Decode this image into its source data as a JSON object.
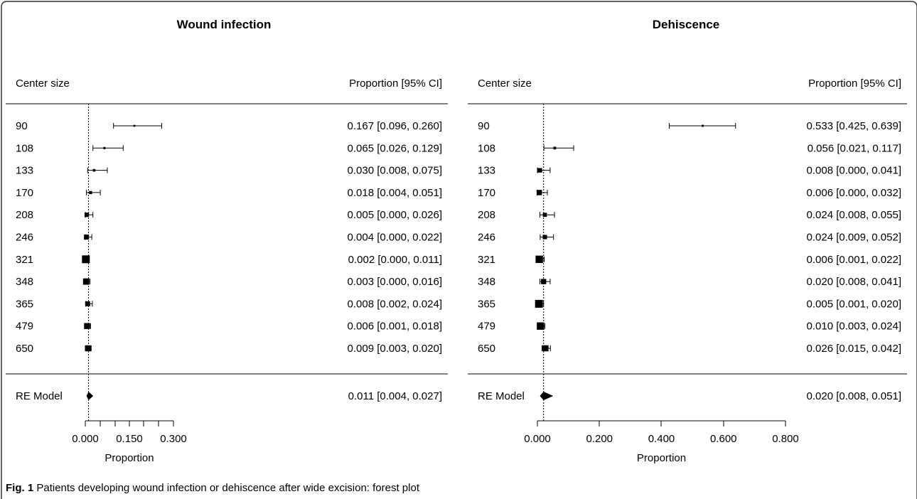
{
  "caption": {
    "label": "Fig. 1",
    "text": "Patients developing wound infection or dehiscence after wide excision: forest plot"
  },
  "chart_data": [
    {
      "type": "forest",
      "title": "Wound infection",
      "column_left": "Center size",
      "column_right": "Proportion [95% CI]",
      "xlabel": "Proportion",
      "xlim": [
        0,
        0.3
      ],
      "xticks": [
        "0.000",
        "0.150",
        "0.300"
      ],
      "reference_line": 0.011,
      "rows": [
        {
          "label": "90",
          "estimate": 0.167,
          "lower": 0.096,
          "upper": 0.26,
          "text": "0.167 [0.096, 0.260]"
        },
        {
          "label": "108",
          "estimate": 0.065,
          "lower": 0.026,
          "upper": 0.129,
          "text": "0.065 [0.026, 0.129]"
        },
        {
          "label": "133",
          "estimate": 0.03,
          "lower": 0.008,
          "upper": 0.075,
          "text": "0.030 [0.008, 0.075]"
        },
        {
          "label": "170",
          "estimate": 0.018,
          "lower": 0.004,
          "upper": 0.051,
          "text": "0.018 [0.004, 0.051]"
        },
        {
          "label": "208",
          "estimate": 0.005,
          "lower": 0.0,
          "upper": 0.026,
          "text": "0.005 [0.000, 0.026]"
        },
        {
          "label": "246",
          "estimate": 0.004,
          "lower": 0.0,
          "upper": 0.022,
          "text": "0.004 [0.000, 0.022]"
        },
        {
          "label": "321",
          "estimate": 0.002,
          "lower": 0.0,
          "upper": 0.011,
          "text": "0.002 [0.000, 0.011]"
        },
        {
          "label": "348",
          "estimate": 0.003,
          "lower": 0.0,
          "upper": 0.016,
          "text": "0.003 [0.000, 0.016]"
        },
        {
          "label": "365",
          "estimate": 0.008,
          "lower": 0.002,
          "upper": 0.024,
          "text": "0.008 [0.002, 0.024]"
        },
        {
          "label": "479",
          "estimate": 0.006,
          "lower": 0.001,
          "upper": 0.018,
          "text": "0.006 [0.001, 0.018]"
        },
        {
          "label": "650",
          "estimate": 0.009,
          "lower": 0.003,
          "upper": 0.02,
          "text": "0.009 [0.003, 0.020]"
        }
      ],
      "summary": {
        "label": "RE Model",
        "estimate": 0.011,
        "lower": 0.004,
        "upper": 0.027,
        "text": "0.011 [0.004, 0.027]"
      }
    },
    {
      "type": "forest",
      "title": "Dehiscence",
      "column_left": "Center size",
      "column_right": "Proportion [95% CI]",
      "xlabel": "Proportion",
      "xlim": [
        0,
        0.8
      ],
      "xticks": [
        "0.000",
        "0.200",
        "0.400",
        "0.600",
        "0.800"
      ],
      "reference_line": 0.02,
      "rows": [
        {
          "label": "90",
          "estimate": 0.533,
          "lower": 0.425,
          "upper": 0.639,
          "text": "0.533 [0.425, 0.639]"
        },
        {
          "label": "108",
          "estimate": 0.056,
          "lower": 0.021,
          "upper": 0.117,
          "text": "0.056 [0.021, 0.117]"
        },
        {
          "label": "133",
          "estimate": 0.008,
          "lower": 0.0,
          "upper": 0.041,
          "text": "0.008 [0.000, 0.041]"
        },
        {
          "label": "170",
          "estimate": 0.006,
          "lower": 0.0,
          "upper": 0.032,
          "text": "0.006 [0.000, 0.032]"
        },
        {
          "label": "208",
          "estimate": 0.024,
          "lower": 0.008,
          "upper": 0.055,
          "text": "0.024 [0.008, 0.055]"
        },
        {
          "label": "246",
          "estimate": 0.024,
          "lower": 0.009,
          "upper": 0.052,
          "text": "0.024 [0.009, 0.052]"
        },
        {
          "label": "321",
          "estimate": 0.006,
          "lower": 0.001,
          "upper": 0.022,
          "text": "0.006 [0.001, 0.022]"
        },
        {
          "label": "348",
          "estimate": 0.02,
          "lower": 0.008,
          "upper": 0.041,
          "text": "0.020 [0.008, 0.041]"
        },
        {
          "label": "365",
          "estimate": 0.005,
          "lower": 0.001,
          "upper": 0.02,
          "text": "0.005 [0.001, 0.020]"
        },
        {
          "label": "479",
          "estimate": 0.01,
          "lower": 0.003,
          "upper": 0.024,
          "text": "0.010 [0.003, 0.024]"
        },
        {
          "label": "650",
          "estimate": 0.026,
          "lower": 0.015,
          "upper": 0.042,
          "text": "0.026 [0.015, 0.042]"
        }
      ],
      "summary": {
        "label": "RE Model",
        "estimate": 0.02,
        "lower": 0.008,
        "upper": 0.051,
        "text": "0.020 [0.008, 0.051]"
      }
    }
  ]
}
